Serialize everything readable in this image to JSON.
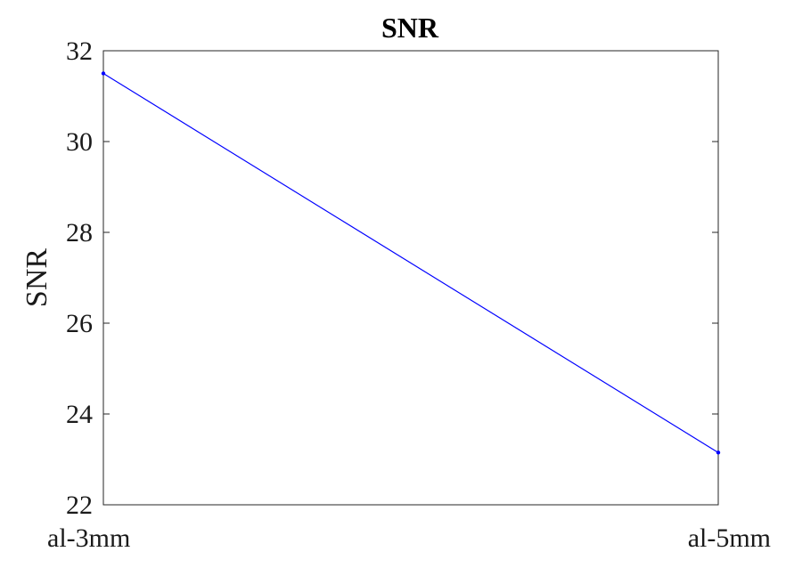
{
  "chart_data": {
    "type": "line",
    "title": "SNR",
    "xlabel": "",
    "ylabel": "SNR",
    "categories": [
      "al-3mm",
      "al-5mm"
    ],
    "series": [
      {
        "values": [
          31.5,
          23.15
        ]
      }
    ],
    "ylim": [
      22,
      32
    ],
    "yticks": [
      "22",
      "24",
      "26",
      "28",
      "30",
      "32"
    ],
    "grid": false,
    "box": true,
    "colors": {
      "line": "#0000ff",
      "axis": "#262626"
    }
  }
}
